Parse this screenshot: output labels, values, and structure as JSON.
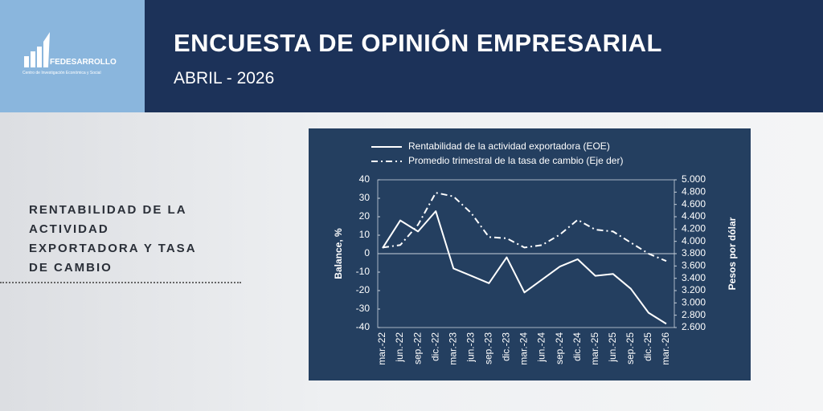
{
  "header": {
    "logo": "FEDESARROLLO",
    "logo_tagline": "Centro de Investigación Económica y Social",
    "title": "ENCUESTA DE OPINIÓN EMPRESARIAL",
    "subtitle": "ABRIL - 2026"
  },
  "sidebar": {
    "heading_lines": [
      "RENTABILIDAD DE LA",
      "ACTIVIDAD",
      "EXPORTADORA Y TASA",
      "DE CAMBIO"
    ]
  },
  "chart_data": {
    "type": "line",
    "categories": [
      "mar.-22",
      "jun.-22",
      "sep.-22",
      "dic.-22",
      "mar.-23",
      "jun.-23",
      "sep.-23",
      "dic.-23",
      "mar.-24",
      "jun.-24",
      "sep.-24",
      "dic.-24",
      "mar.-25",
      "jun.-25",
      "sep.-25",
      "dic.-25",
      "mar.-26"
    ],
    "ylabel": "Balance, %",
    "y2label": "Pesos por dólar",
    "ylim": [
      -40,
      40
    ],
    "yticks": [
      -40,
      -30,
      -20,
      -10,
      0,
      10,
      20,
      30,
      40
    ],
    "y2lim": [
      2600,
      5000
    ],
    "y2ticks": [
      {
        "value": 2600,
        "label": "2.600"
      },
      {
        "value": 2800,
        "label": "2.800"
      },
      {
        "value": 3000,
        "label": "3.000"
      },
      {
        "value": 3200,
        "label": "3.200"
      },
      {
        "value": 3400,
        "label": "3.400"
      },
      {
        "value": 3600,
        "label": "3.600"
      },
      {
        "value": 3800,
        "label": "3.800"
      },
      {
        "value": 4000,
        "label": "4.000"
      },
      {
        "value": 4200,
        "label": "4.200"
      },
      {
        "value": 4400,
        "label": "4.400"
      },
      {
        "value": 4600,
        "label": "4.600"
      },
      {
        "value": 4800,
        "label": "4.800"
      },
      {
        "value": 5000,
        "label": "5.000"
      }
    ],
    "series": [
      {
        "name": "Rentabilidad de la actividad exportadora (EOE)",
        "color": "#ffffff",
        "style": "solid",
        "values": [
          3,
          18,
          12,
          23,
          -8,
          -12,
          -16,
          -2,
          -21,
          -14,
          -7,
          -3,
          -12,
          -11,
          -19,
          -32,
          -38
        ]
      },
      {
        "name": "Promedio trimestral de la tasa de cambio  (Eje der)",
        "color": "#ffffff",
        "style": "dashdot",
        "axis": "y2",
        "values": [
          3900,
          3940,
          4270,
          4790,
          4730,
          4460,
          4070,
          4050,
          3900,
          3940,
          4110,
          4350,
          4190,
          4160,
          3980,
          3800,
          3680
        ]
      }
    ]
  }
}
